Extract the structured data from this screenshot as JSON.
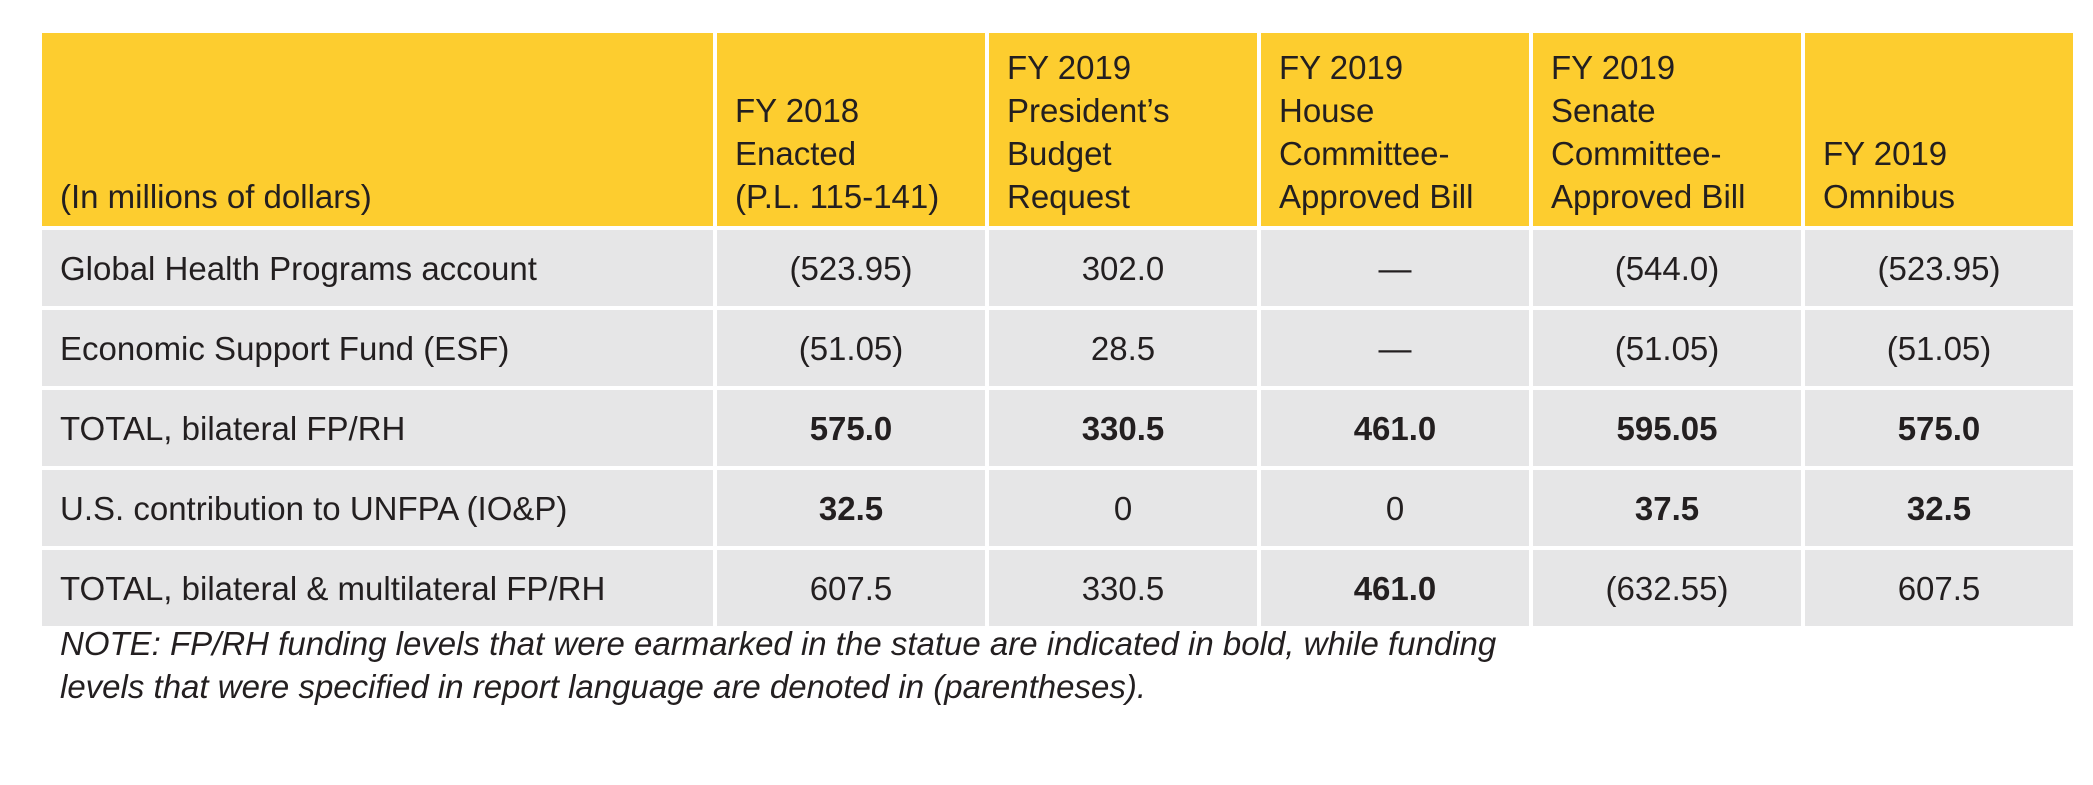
{
  "colors": {
    "header_bg": "#fdcd2f",
    "row_bg": "#e6e6e7"
  },
  "table": {
    "headers": [
      "(In millions of dollars)",
      "FY 2018\nEnacted\n(P.L. 115-141)",
      "FY 2019\nPresident’s\nBudget\nRequest",
      "FY 2019\nHouse\nCommittee-\nApproved Bill",
      "FY 2019\nSenate\nCommittee-\nApproved Bill",
      "FY 2019\nOmnibus"
    ],
    "rows": [
      {
        "label": "Global Health Programs account",
        "cells": [
          {
            "value": "(523.95)",
            "bold": false
          },
          {
            "value": "302.0",
            "bold": false
          },
          {
            "value": "—",
            "bold": false
          },
          {
            "value": "(544.0)",
            "bold": false
          },
          {
            "value": "(523.95)",
            "bold": false
          }
        ]
      },
      {
        "label": "Economic Support Fund (ESF)",
        "cells": [
          {
            "value": "(51.05)",
            "bold": false
          },
          {
            "value": "28.5",
            "bold": false
          },
          {
            "value": "—",
            "bold": false
          },
          {
            "value": "(51.05)",
            "bold": false
          },
          {
            "value": "(51.05)",
            "bold": false
          }
        ]
      },
      {
        "label": "TOTAL, bilateral FP/RH",
        "cells": [
          {
            "value": "575.0",
            "bold": true
          },
          {
            "value": "330.5",
            "bold": true
          },
          {
            "value": "461.0",
            "bold": true
          },
          {
            "value": "595.05",
            "bold": true
          },
          {
            "value": "575.0",
            "bold": true
          }
        ]
      },
      {
        "label": "U.S. contribution to UNFPA (IO&P)",
        "cells": [
          {
            "value": "32.5",
            "bold": true
          },
          {
            "value": "0",
            "bold": false
          },
          {
            "value": "0",
            "bold": false
          },
          {
            "value": "37.5",
            "bold": true
          },
          {
            "value": "32.5",
            "bold": true
          }
        ]
      },
      {
        "label": "TOTAL, bilateral & multilateral FP/RH",
        "cells": [
          {
            "value": "607.5",
            "bold": false
          },
          {
            "value": "330.5",
            "bold": false
          },
          {
            "value": "461.0",
            "bold": true
          },
          {
            "value": "(632.55)",
            "bold": false
          },
          {
            "value": "607.5",
            "bold": false
          }
        ]
      }
    ]
  },
  "note": "NOTE: FP/RH funding levels that were earmarked in the statue are indicated in bold, while funding\nlevels that were specified in report language are denoted in (parentheses)."
}
